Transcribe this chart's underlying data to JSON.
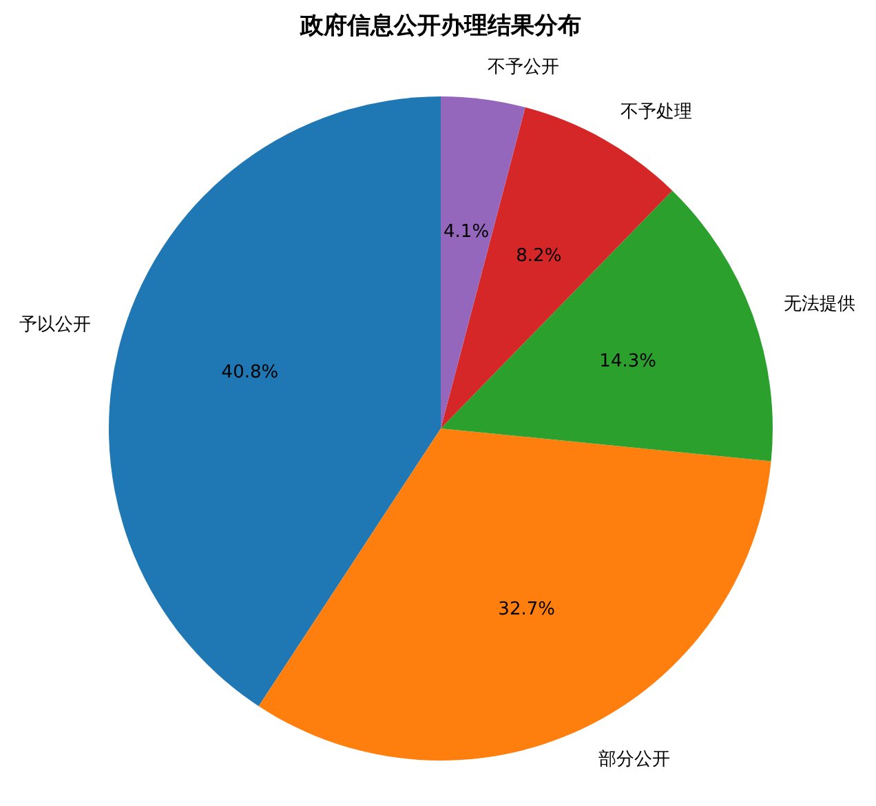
{
  "chart_data": {
    "type": "pie",
    "title": "政府信息公开办理结果分布",
    "categories": [
      "予以公开",
      "部分公开",
      "无法提供",
      "不予处理",
      "不予公开"
    ],
    "values": [
      40.8,
      32.7,
      14.3,
      8.2,
      4.1
    ],
    "colors": [
      "#1f77b4",
      "#ff7f0e",
      "#2ca02c",
      "#d62728",
      "#9467bd"
    ],
    "value_labels": [
      "40.8%",
      "32.7%",
      "14.3%",
      "8.2%",
      "4.1%"
    ]
  }
}
